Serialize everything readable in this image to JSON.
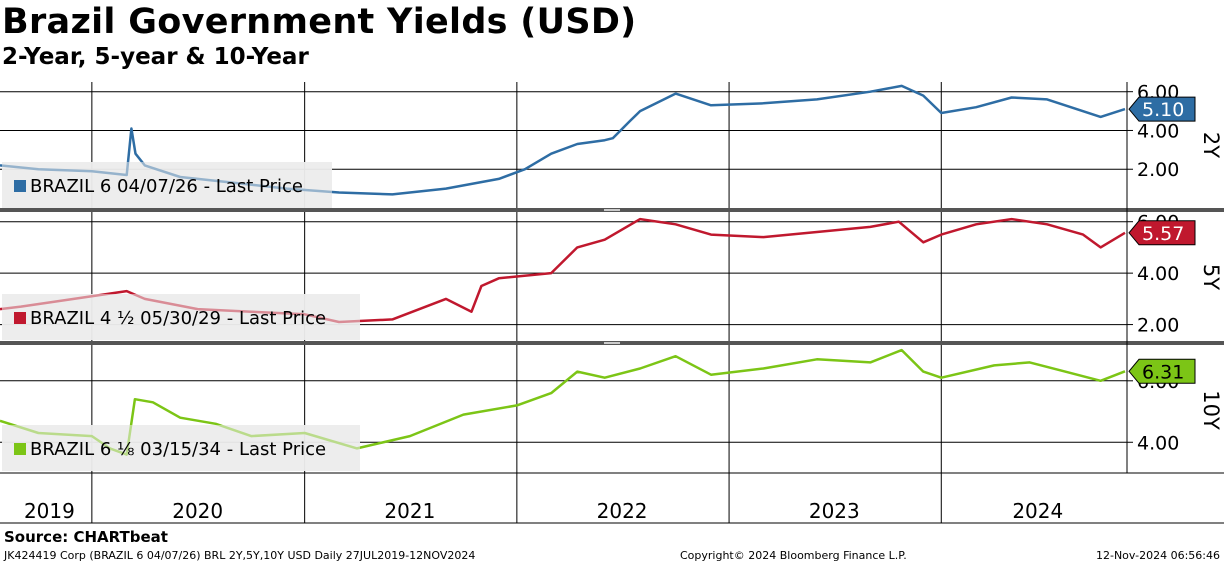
{
  "title": "Brazil Government Yields (USD)",
  "subtitle": "2-Year, 5-year & 10-Year",
  "footer": {
    "source": "Source:  CHARTbeat",
    "left": "JK424419 Corp (BRAZIL 6 04/07/26) BRL 2Y,5Y,10Y USD  Daily 27JUL2019-12NOV2024",
    "mid": "Copyright© 2024 Bloomberg Finance L.P.",
    "right": "12-Nov-2024 06:56:46"
  },
  "chart_data": [
    {
      "type": "line",
      "panel_label": "2Y",
      "legend": "BRAZIL 6 04/07/26 - Last Price",
      "last_value_label": "5.10",
      "color": "#2e6da4",
      "ylim": [
        0.0,
        6.5
      ],
      "yticks": [
        "2.00",
        "4.00",
        "6.00"
      ],
      "x": [
        "2019-07-27",
        "2019-10-01",
        "2020-01-01",
        "2020-03-01",
        "2020-03-09",
        "2020-03-16",
        "2020-04-01",
        "2020-06-01",
        "2020-09-01",
        "2020-12-01",
        "2021-03-01",
        "2021-06-01",
        "2021-09-01",
        "2021-12-01",
        "2022-01-15",
        "2022-03-01",
        "2022-04-15",
        "2022-06-01",
        "2022-06-15",
        "2022-07-15",
        "2022-08-01",
        "2022-10-01",
        "2022-12-01",
        "2023-03-01",
        "2023-06-01",
        "2023-09-01",
        "2023-10-25",
        "2023-12-01",
        "2024-01-01",
        "2024-03-01",
        "2024-05-01",
        "2024-07-01",
        "2024-08-01",
        "2024-10-01",
        "2024-11-12"
      ],
      "values": [
        2.2,
        2.0,
        1.9,
        1.7,
        4.1,
        2.8,
        2.2,
        1.6,
        1.3,
        1.0,
        0.8,
        0.7,
        1.0,
        1.5,
        2.0,
        2.8,
        3.3,
        3.5,
        3.6,
        4.5,
        5.0,
        5.9,
        5.3,
        5.4,
        5.6,
        6.0,
        6.3,
        5.8,
        4.9,
        5.2,
        5.7,
        5.6,
        5.3,
        4.7,
        5.1
      ]
    },
    {
      "type": "line",
      "panel_label": "5Y",
      "legend": "BRAZIL 4 ½ 05/30/29 - Last Price",
      "last_value_label": "5.57",
      "color": "#c0182e",
      "ylim": [
        1.4,
        6.3
      ],
      "yticks": [
        "2.00",
        "4.00",
        "6.00"
      ],
      "x": [
        "2019-07-27",
        "2019-09-01",
        "2020-03-01",
        "2020-04-01",
        "2020-07-01",
        "2020-10-01",
        "2021-01-01",
        "2021-03-01",
        "2021-06-01",
        "2021-09-01",
        "2021-10-15",
        "2021-11-01",
        "2021-12-01",
        "2022-03-01",
        "2022-04-15",
        "2022-06-01",
        "2022-08-01",
        "2022-10-01",
        "2022-12-01",
        "2023-03-01",
        "2023-06-01",
        "2023-09-01",
        "2023-10-20",
        "2023-12-01",
        "2024-01-01",
        "2024-03-01",
        "2024-05-01",
        "2024-07-01",
        "2024-09-01",
        "2024-10-01",
        "2024-11-12"
      ],
      "values": [
        2.6,
        2.7,
        3.3,
        3.0,
        2.6,
        2.5,
        2.4,
        2.1,
        2.2,
        3.0,
        2.5,
        3.5,
        3.8,
        4.0,
        5.0,
        5.3,
        6.1,
        5.9,
        5.5,
        5.4,
        5.6,
        5.8,
        6.0,
        5.2,
        5.5,
        5.9,
        6.1,
        5.9,
        5.5,
        5.0,
        5.57
      ]
    },
    {
      "type": "line",
      "panel_label": "10Y",
      "legend": "BRAZIL 6 ⅛ 03/15/34 - Last Price",
      "last_value_label": "6.31",
      "color": "#7cc516",
      "ylim": [
        3.0,
        7.1
      ],
      "yticks": [
        "4.00",
        "6.00"
      ],
      "x": [
        "2019-07-27",
        "2019-10-01",
        "2020-01-01",
        "2020-02-01",
        "2020-03-01",
        "2020-03-15",
        "2020-04-15",
        "2020-06-01",
        "2020-08-01",
        "2020-10-01",
        "2021-01-01",
        "2021-04-01",
        "2021-07-01",
        "2021-10-01",
        "2022-01-01",
        "2022-03-01",
        "2022-04-15",
        "2022-06-01",
        "2022-08-01",
        "2022-10-01",
        "2022-12-01",
        "2023-03-01",
        "2023-06-01",
        "2023-09-01",
        "2023-10-25",
        "2023-12-01",
        "2024-01-01",
        "2024-04-01",
        "2024-06-01",
        "2024-08-01",
        "2024-10-01",
        "2024-11-12"
      ],
      "values": [
        4.7,
        4.3,
        4.2,
        3.8,
        3.6,
        5.4,
        5.3,
        4.8,
        4.6,
        4.2,
        4.3,
        3.8,
        4.2,
        4.9,
        5.2,
        5.6,
        6.3,
        6.1,
        6.4,
        6.8,
        6.2,
        6.4,
        6.7,
        6.6,
        7.0,
        6.3,
        6.1,
        6.5,
        6.6,
        6.3,
        6.0,
        6.31
      ]
    }
  ],
  "x_axis": {
    "labels": [
      "2019",
      "2020",
      "2021",
      "2022",
      "2023",
      "2024"
    ],
    "start": "2019-07-27",
    "end": "2024-11-12"
  }
}
